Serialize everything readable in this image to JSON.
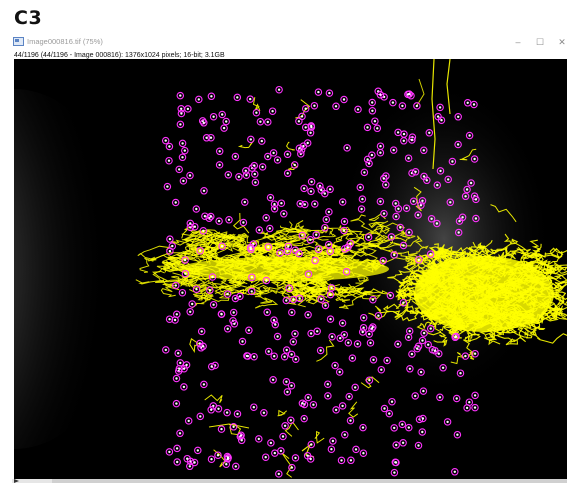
{
  "figure": {
    "panel_label": "C3"
  },
  "window": {
    "title": "Image000816.tif (75%)",
    "info": "44/1196 (44/1196 - Image 000816): 1376x1024 pixels; 16-bit; 3.1GB",
    "icon": "imagej-image-icon",
    "controls": [
      "minimize-icon",
      "maximize-icon",
      "close-icon"
    ],
    "minimize_glyph": "–",
    "maximize_glyph": "☐",
    "close_glyph": "✕"
  },
  "stack": {
    "current_slice": 44,
    "total_slices": 1196
  },
  "colors": {
    "tracks": "#ffff00",
    "spot_markers": "#ff33ff",
    "background": "#000000"
  }
}
